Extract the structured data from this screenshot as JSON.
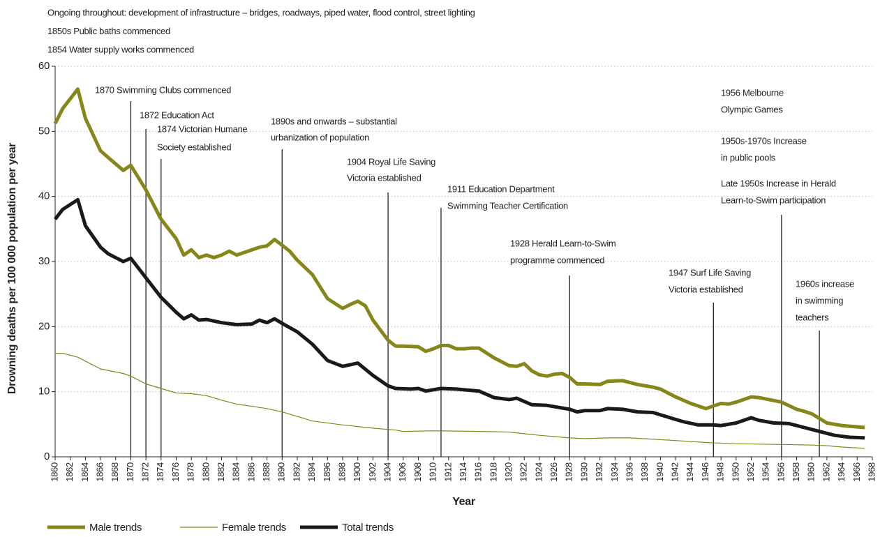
{
  "chart_data": {
    "type": "line",
    "notes": [
      "Ongoing throughout: development of infrastructure – bridges, roadways, piped water, flood control, street lighting",
      "1850s Public baths commenced",
      "1854 Water supply works commenced"
    ],
    "xlabel": "Year",
    "ylabel": "Drowning deaths per 100 000 population per year",
    "xlim": [
      1860,
      1968
    ],
    "xticks": [
      1860,
      1862,
      1864,
      1866,
      1868,
      1870,
      1872,
      1874,
      1876,
      1878,
      1880,
      1882,
      1884,
      1886,
      1888,
      1890,
      1892,
      1894,
      1896,
      1898,
      1900,
      1902,
      1904,
      1906,
      1908,
      1910,
      1912,
      1914,
      1916,
      1918,
      1920,
      1922,
      1924,
      1926,
      1928,
      1930,
      1932,
      1934,
      1936,
      1938,
      1940,
      1942,
      1944,
      1946,
      1948,
      1950,
      1952,
      1954,
      1956,
      1958,
      1960,
      1962,
      1964,
      1966,
      1968
    ],
    "ylim": [
      0,
      60
    ],
    "yticks": [
      0,
      10,
      20,
      30,
      40,
      50,
      60
    ],
    "grid": true,
    "series": [
      {
        "name": "Male trends",
        "color": "#86861a",
        "width": 5,
        "x": [
          1860,
          1861,
          1863,
          1864,
          1866,
          1867,
          1869,
          1870,
          1872,
          1874,
          1876,
          1877,
          1878,
          1879,
          1880,
          1881,
          1882,
          1883,
          1884,
          1886,
          1887,
          1888,
          1889,
          1890,
          1891,
          1892,
          1894,
          1896,
          1898,
          1899,
          1900,
          1901,
          1902,
          1904,
          1905,
          1906,
          1908,
          1909,
          1910,
          1911,
          1912,
          1913,
          1914,
          1915,
          1916,
          1918,
          1920,
          1921,
          1922,
          1923,
          1924,
          1925,
          1926,
          1927,
          1928,
          1929,
          1930,
          1932,
          1933,
          1935,
          1937,
          1939,
          1940,
          1942,
          1944,
          1946,
          1948,
          1949,
          1950,
          1952,
          1953,
          1956,
          1958,
          1959,
          1960,
          1962,
          1964,
          1967
        ],
        "values": [
          51.2,
          53.5,
          56.5,
          52,
          47,
          46,
          44,
          44.8,
          41,
          36.5,
          33.5,
          31,
          31.8,
          30.6,
          31,
          30.6,
          31,
          31.6,
          31,
          31.8,
          32.2,
          32.4,
          33.4,
          32.5,
          31.6,
          30.2,
          28,
          24.3,
          22.8,
          23.4,
          23.9,
          23.2,
          21,
          17.9,
          17,
          17,
          16.9,
          16.2,
          16.6,
          17.1,
          17.1,
          16.6,
          16.6,
          16.7,
          16.7,
          15.2,
          14,
          13.9,
          14.3,
          13.2,
          12.6,
          12.4,
          12.7,
          12.8,
          12.2,
          11.2,
          11.2,
          11.1,
          11.6,
          11.7,
          11.1,
          10.7,
          10.4,
          9.2,
          8.2,
          7.4,
          8.2,
          8.1,
          8.4,
          9.2,
          9.1,
          8.4,
          7.3,
          7,
          6.6,
          5.2,
          4.8,
          4.5
        ]
      },
      {
        "name": "Female trends",
        "color": "#86861a",
        "width": 1.2,
        "x": [
          1860,
          1861,
          1863,
          1866,
          1869,
          1870,
          1872,
          1874,
          1876,
          1878,
          1880,
          1882,
          1884,
          1888,
          1890,
          1894,
          1898,
          1902,
          1905,
          1906,
          1910,
          1916,
          1920,
          1924,
          1928,
          1930,
          1933,
          1936,
          1942,
          1946,
          1950,
          1956,
          1960,
          1962,
          1964,
          1967
        ],
        "values": [
          15.9,
          15.9,
          15.3,
          13.5,
          12.8,
          12.4,
          11.2,
          10.5,
          9.8,
          9.7,
          9.4,
          8.7,
          8.1,
          7.4,
          6.9,
          5.5,
          4.9,
          4.4,
          4.1,
          3.9,
          4,
          3.9,
          3.8,
          3.3,
          2.9,
          2.8,
          2.9,
          2.9,
          2.5,
          2.2,
          2,
          1.9,
          1.8,
          1.7,
          1.5,
          1.3
        ]
      },
      {
        "name": "Total trends",
        "color": "#1a1a1a",
        "width": 5,
        "x": [
          1860,
          1861,
          1863,
          1864,
          1866,
          1867,
          1869,
          1870,
          1872,
          1874,
          1876,
          1877,
          1878,
          1879,
          1880,
          1882,
          1884,
          1886,
          1887,
          1888,
          1889,
          1890,
          1892,
          1894,
          1896,
          1898,
          1900,
          1902,
          1904,
          1905,
          1907,
          1908,
          1909,
          1911,
          1913,
          1916,
          1918,
          1920,
          1921,
          1923,
          1925,
          1928,
          1929,
          1930,
          1932,
          1933,
          1935,
          1937,
          1939,
          1941,
          1943,
          1945,
          1947,
          1948,
          1950,
          1952,
          1953,
          1955,
          1957,
          1959,
          1961,
          1963,
          1965,
          1967
        ],
        "values": [
          36.5,
          38,
          39.5,
          35.5,
          32.2,
          31.2,
          30,
          30.5,
          27.5,
          24.5,
          22.2,
          21.2,
          21.8,
          21,
          21.1,
          20.6,
          20.3,
          20.4,
          21,
          20.6,
          21.2,
          20.5,
          19.2,
          17.3,
          14.8,
          13.9,
          14.4,
          12.5,
          10.9,
          10.5,
          10.4,
          10.5,
          10.1,
          10.5,
          10.4,
          10.1,
          9.1,
          8.8,
          9,
          8,
          7.9,
          7.3,
          6.9,
          7.1,
          7.1,
          7.4,
          7.3,
          6.9,
          6.8,
          6.1,
          5.4,
          4.9,
          4.9,
          4.8,
          5.2,
          6,
          5.6,
          5.2,
          5.1,
          4.5,
          3.9,
          3.3,
          3.0,
          2.9
        ]
      }
    ],
    "annotations": [
      {
        "x": 1870,
        "lines": [
          "1870 Swimming Clubs commenced"
        ]
      },
      {
        "x": 1872,
        "lines": [
          "1872 Education Act"
        ]
      },
      {
        "x": 1874,
        "lines": [
          "1874 Victorian Humane",
          "Society established"
        ]
      },
      {
        "x": 1890,
        "lines": [
          "1890s and onwards – substantial",
          "urbanization of population"
        ]
      },
      {
        "x": 1904,
        "lines": [
          "1904 Royal Life Saving",
          "Victoria established"
        ]
      },
      {
        "x": 1911,
        "lines": [
          "1911 Education Department",
          "Swimming Teacher Certification"
        ]
      },
      {
        "x": 1928,
        "lines": [
          "1928 Herald Learn-to-Swim",
          "programme commenced"
        ]
      },
      {
        "x": 1947,
        "lines": [
          "1947 Surf Life Saving",
          "Victoria established"
        ]
      },
      {
        "x": 1956,
        "lines": [
          "1956 Melbourne",
          "Olympic Games",
          "1950s-1970s Increase",
          "in public pools",
          "Late 1950s Increase in Herald",
          "Learn-to-Swim participation"
        ]
      },
      {
        "x": 1961,
        "lines": [
          "1960s increase",
          "in swimming",
          "teachers"
        ]
      }
    ]
  }
}
